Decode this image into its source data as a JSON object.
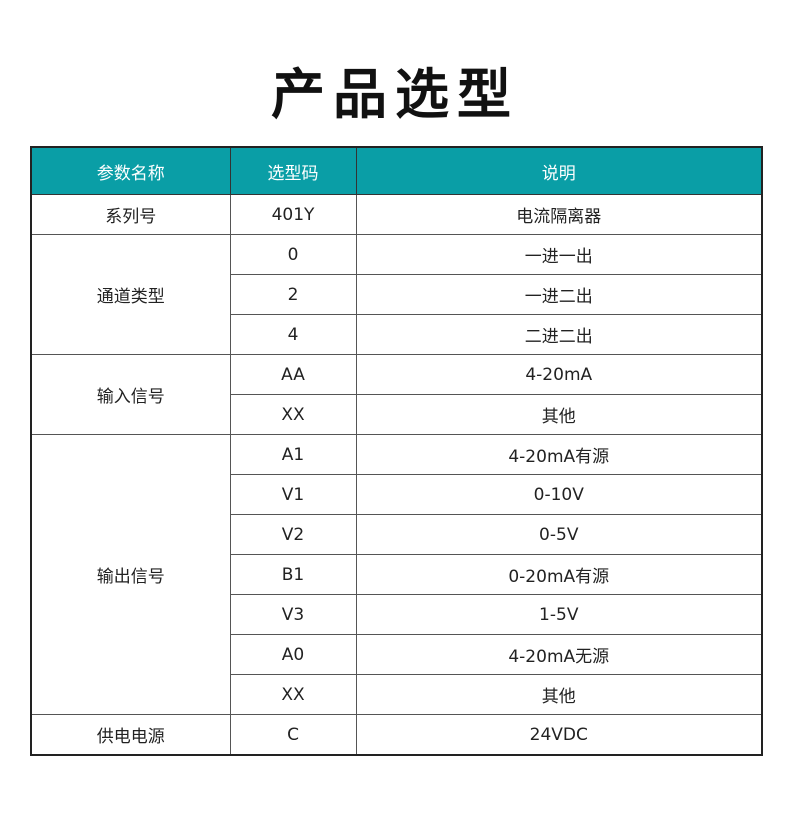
{
  "title": "产品选型",
  "header_color": "#0a9ea6",
  "columns": [
    "参数名称",
    "选型码",
    "说明"
  ],
  "groups": [
    {
      "name": "系列号",
      "rows": [
        {
          "code": "401Y",
          "desc": "电流隔离器"
        }
      ]
    },
    {
      "name": "通道类型",
      "rows": [
        {
          "code": "0",
          "desc": "一进一出"
        },
        {
          "code": "2",
          "desc": "一进二出"
        },
        {
          "code": "4",
          "desc": "二进二出"
        }
      ]
    },
    {
      "name": "输入信号",
      "rows": [
        {
          "code": "AA",
          "desc": "4-20mA"
        },
        {
          "code": "XX",
          "desc": "其他"
        }
      ]
    },
    {
      "name": "输出信号",
      "rows": [
        {
          "code": "A1",
          "desc": "4-20mA有源"
        },
        {
          "code": "V1",
          "desc": "0-10V"
        },
        {
          "code": "V2",
          "desc": "0-5V"
        },
        {
          "code": "B1",
          "desc": "0-20mA有源"
        },
        {
          "code": "V3",
          "desc": "1-5V"
        },
        {
          "code": "A0",
          "desc": "4-20mA无源"
        },
        {
          "code": "XX",
          "desc": "其他"
        }
      ]
    },
    {
      "name": "供电电源",
      "rows": [
        {
          "code": "C",
          "desc": "24VDC"
        }
      ]
    }
  ]
}
